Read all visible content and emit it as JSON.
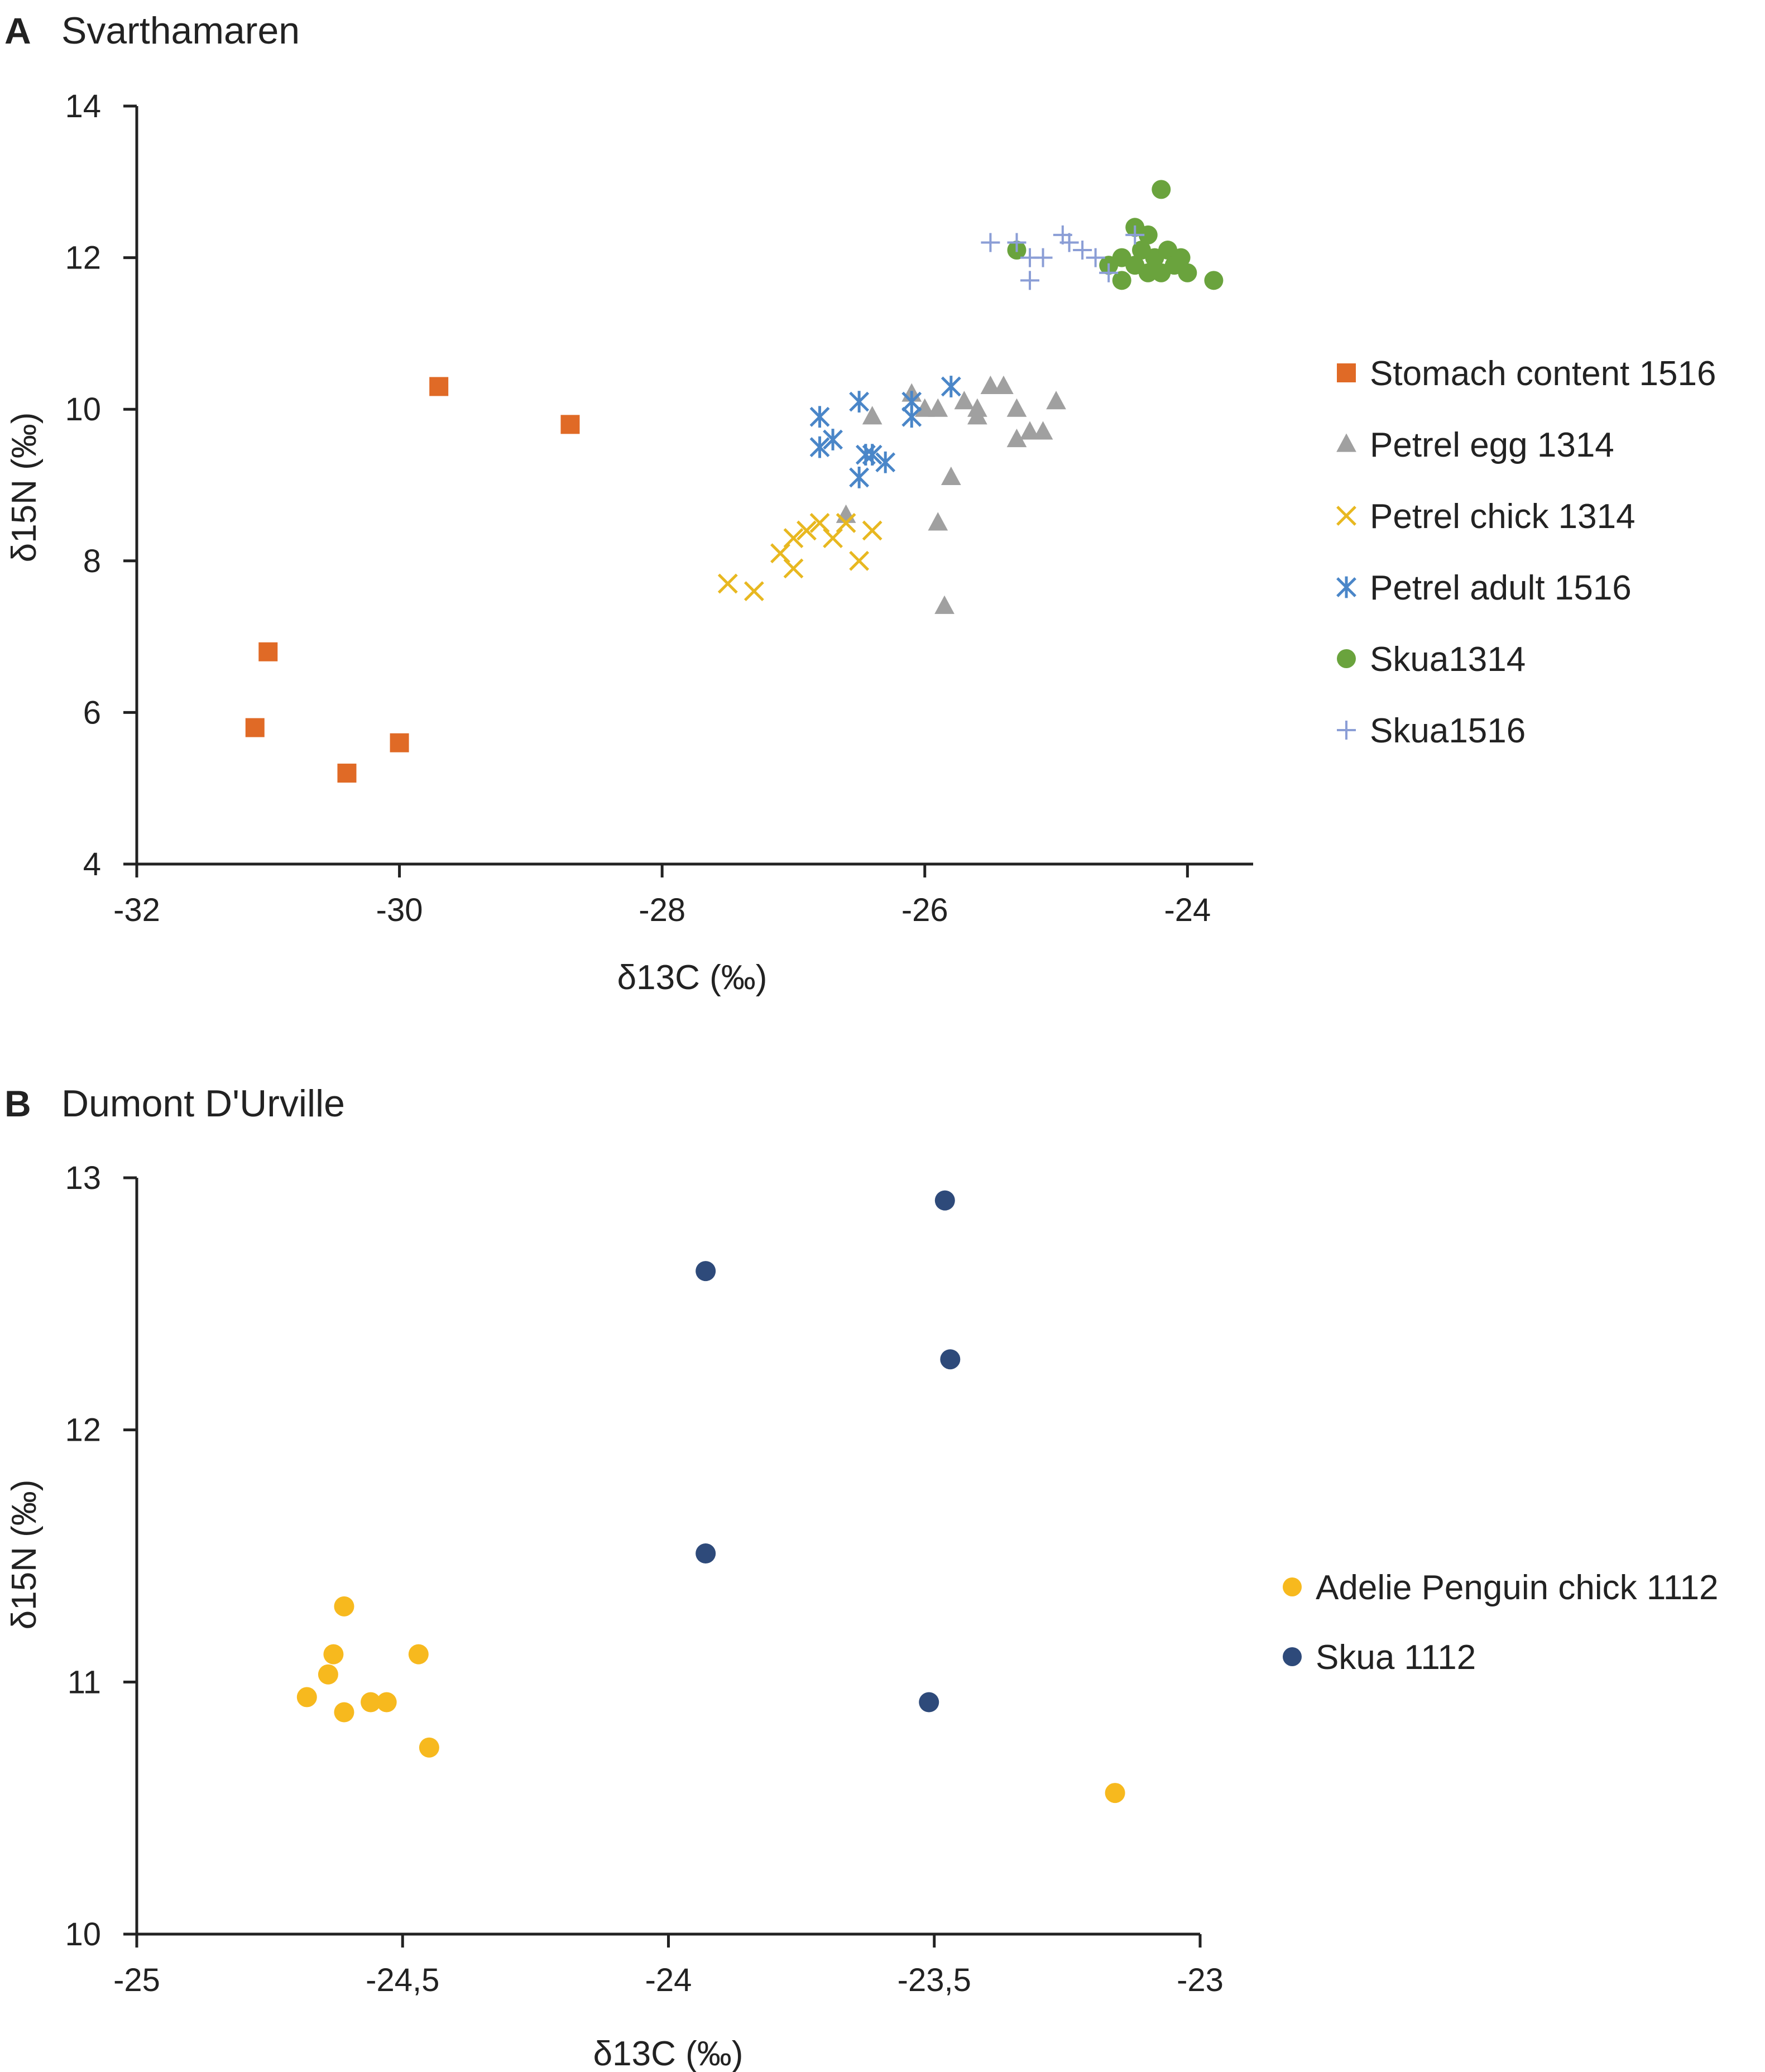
{
  "chart_data": [
    {
      "panel": "A",
      "type": "scatter",
      "title": "Svarthamaren",
      "xlabel": "δ13C (‰)",
      "ylabel": "δ15N (‰)",
      "xlim": [
        -32,
        -23.5
      ],
      "ylim": [
        4,
        14
      ],
      "xticks": [
        -32,
        -30,
        -28,
        -26,
        -24
      ],
      "xtick_labels": [
        "-32",
        "-30",
        "-28",
        "-26",
        "-24"
      ],
      "yticks": [
        4,
        6,
        8,
        10,
        12,
        14
      ],
      "ytick_labels": [
        "4",
        "6",
        "8",
        "10",
        "12",
        "14"
      ],
      "grid": false,
      "legend_position": "right",
      "series": [
        {
          "name": "Stomach content 1516",
          "marker": "square",
          "color": "#E06A26",
          "points": [
            [
              -31.1,
              5.8
            ],
            [
              -31.0,
              6.8
            ],
            [
              -30.4,
              5.2
            ],
            [
              -30.0,
              5.6
            ],
            [
              -29.7,
              10.3
            ],
            [
              -28.7,
              9.8
            ]
          ]
        },
        {
          "name": "Petrel egg 1314",
          "marker": "triangle",
          "color": "#A0A0A0",
          "points": [
            [
              -26.6,
              8.6
            ],
            [
              -26.4,
              9.9
            ],
            [
              -26.1,
              10.2
            ],
            [
              -25.9,
              8.5
            ],
            [
              -25.85,
              7.4
            ],
            [
              -25.9,
              10.0
            ],
            [
              -25.8,
              9.1
            ],
            [
              -25.7,
              10.1
            ],
            [
              -25.6,
              10.0
            ],
            [
              -25.5,
              10.3
            ],
            [
              -25.4,
              10.3
            ],
            [
              -25.3,
              10.0
            ],
            [
              -25.3,
              9.6
            ],
            [
              -25.2,
              9.7
            ],
            [
              -25.1,
              9.7
            ],
            [
              -25.0,
              10.1
            ],
            [
              -26.0,
              10.0
            ],
            [
              -25.6,
              9.9
            ]
          ]
        },
        {
          "name": "Petrel chick 1314",
          "marker": "x",
          "color": "#E8B820",
          "points": [
            [
              -27.5,
              7.7
            ],
            [
              -27.3,
              7.6
            ],
            [
              -27.1,
              8.1
            ],
            [
              -27.0,
              7.9
            ],
            [
              -27.0,
              8.3
            ],
            [
              -26.9,
              8.4
            ],
            [
              -26.8,
              8.5
            ],
            [
              -26.7,
              8.3
            ],
            [
              -26.6,
              8.5
            ],
            [
              -26.5,
              8.0
            ],
            [
              -26.4,
              8.4
            ]
          ]
        },
        {
          "name": "Petrel adult 1516",
          "marker": "asterisk",
          "color": "#4A86C8",
          "points": [
            [
              -26.8,
              9.9
            ],
            [
              -26.8,
              9.5
            ],
            [
              -26.7,
              9.6
            ],
            [
              -26.5,
              10.1
            ],
            [
              -26.5,
              9.1
            ],
            [
              -26.45,
              9.4
            ],
            [
              -26.4,
              9.4
            ],
            [
              -26.3,
              9.3
            ],
            [
              -26.1,
              10.1
            ],
            [
              -26.1,
              9.9
            ],
            [
              -25.8,
              10.3
            ]
          ]
        },
        {
          "name": "Skua1314",
          "marker": "circle",
          "color": "#6AA33D",
          "points": [
            [
              -25.3,
              12.1
            ],
            [
              -24.5,
              12.0
            ],
            [
              -24.5,
              11.7
            ],
            [
              -24.4,
              12.4
            ],
            [
              -24.4,
              11.9
            ],
            [
              -24.3,
              12.3
            ],
            [
              -24.3,
              11.8
            ],
            [
              -24.25,
              12.0
            ],
            [
              -24.2,
              12.9
            ],
            [
              -24.2,
              11.8
            ],
            [
              -24.15,
              12.1
            ],
            [
              -24.1,
              11.9
            ],
            [
              -24.05,
              12.0
            ],
            [
              -24.0,
              11.8
            ],
            [
              -23.8,
              11.7
            ],
            [
              -24.6,
              11.9
            ],
            [
              -24.35,
              12.1
            ]
          ]
        },
        {
          "name": "Skua1516",
          "marker": "plus",
          "color": "#8B9ED6",
          "points": [
            [
              -25.5,
              12.2
            ],
            [
              -25.3,
              12.2
            ],
            [
              -25.2,
              11.7
            ],
            [
              -25.1,
              12.0
            ],
            [
              -24.95,
              12.3
            ],
            [
              -24.9,
              12.2
            ],
            [
              -24.8,
              12.1
            ],
            [
              -24.7,
              12.0
            ],
            [
              -24.6,
              11.8
            ],
            [
              -24.4,
              12.3
            ],
            [
              -25.2,
              12.0
            ]
          ]
        }
      ]
    },
    {
      "panel": "B",
      "type": "scatter",
      "title": "Dumont D'Urville",
      "xlabel": "δ13C  (‰)",
      "ylabel": "δ15N (‰)",
      "xlim": [
        -25,
        -23
      ],
      "ylim": [
        10,
        13
      ],
      "xticks": [
        -25,
        -24.5,
        -24,
        -23.5,
        -23
      ],
      "xtick_labels": [
        "-25",
        "-24,5",
        "-24",
        "-23,5",
        "-23"
      ],
      "yticks": [
        10,
        11,
        12,
        13
      ],
      "ytick_labels": [
        "10",
        "11",
        "12",
        "13"
      ],
      "grid": false,
      "legend_position": "right",
      "series": [
        {
          "name": "Adelie Penguin chick 1112",
          "marker": "circle",
          "color": "#F7B91E",
          "points": [
            [
              -24.68,
              10.94
            ],
            [
              -24.64,
              11.03
            ],
            [
              -24.63,
              11.11
            ],
            [
              -24.61,
              11.3
            ],
            [
              -24.61,
              10.88
            ],
            [
              -24.56,
              10.92
            ],
            [
              -24.53,
              10.92
            ],
            [
              -24.47,
              11.11
            ],
            [
              -24.45,
              10.74
            ],
            [
              -23.16,
              10.56
            ]
          ]
        },
        {
          "name": "Skua 1112",
          "marker": "circle",
          "color": "#2E4A7A",
          "points": [
            [
              -23.93,
              12.63
            ],
            [
              -23.93,
              11.51
            ],
            [
              -23.48,
              12.91
            ],
            [
              -23.47,
              12.28
            ],
            [
              -23.51,
              10.92
            ]
          ]
        }
      ]
    }
  ]
}
